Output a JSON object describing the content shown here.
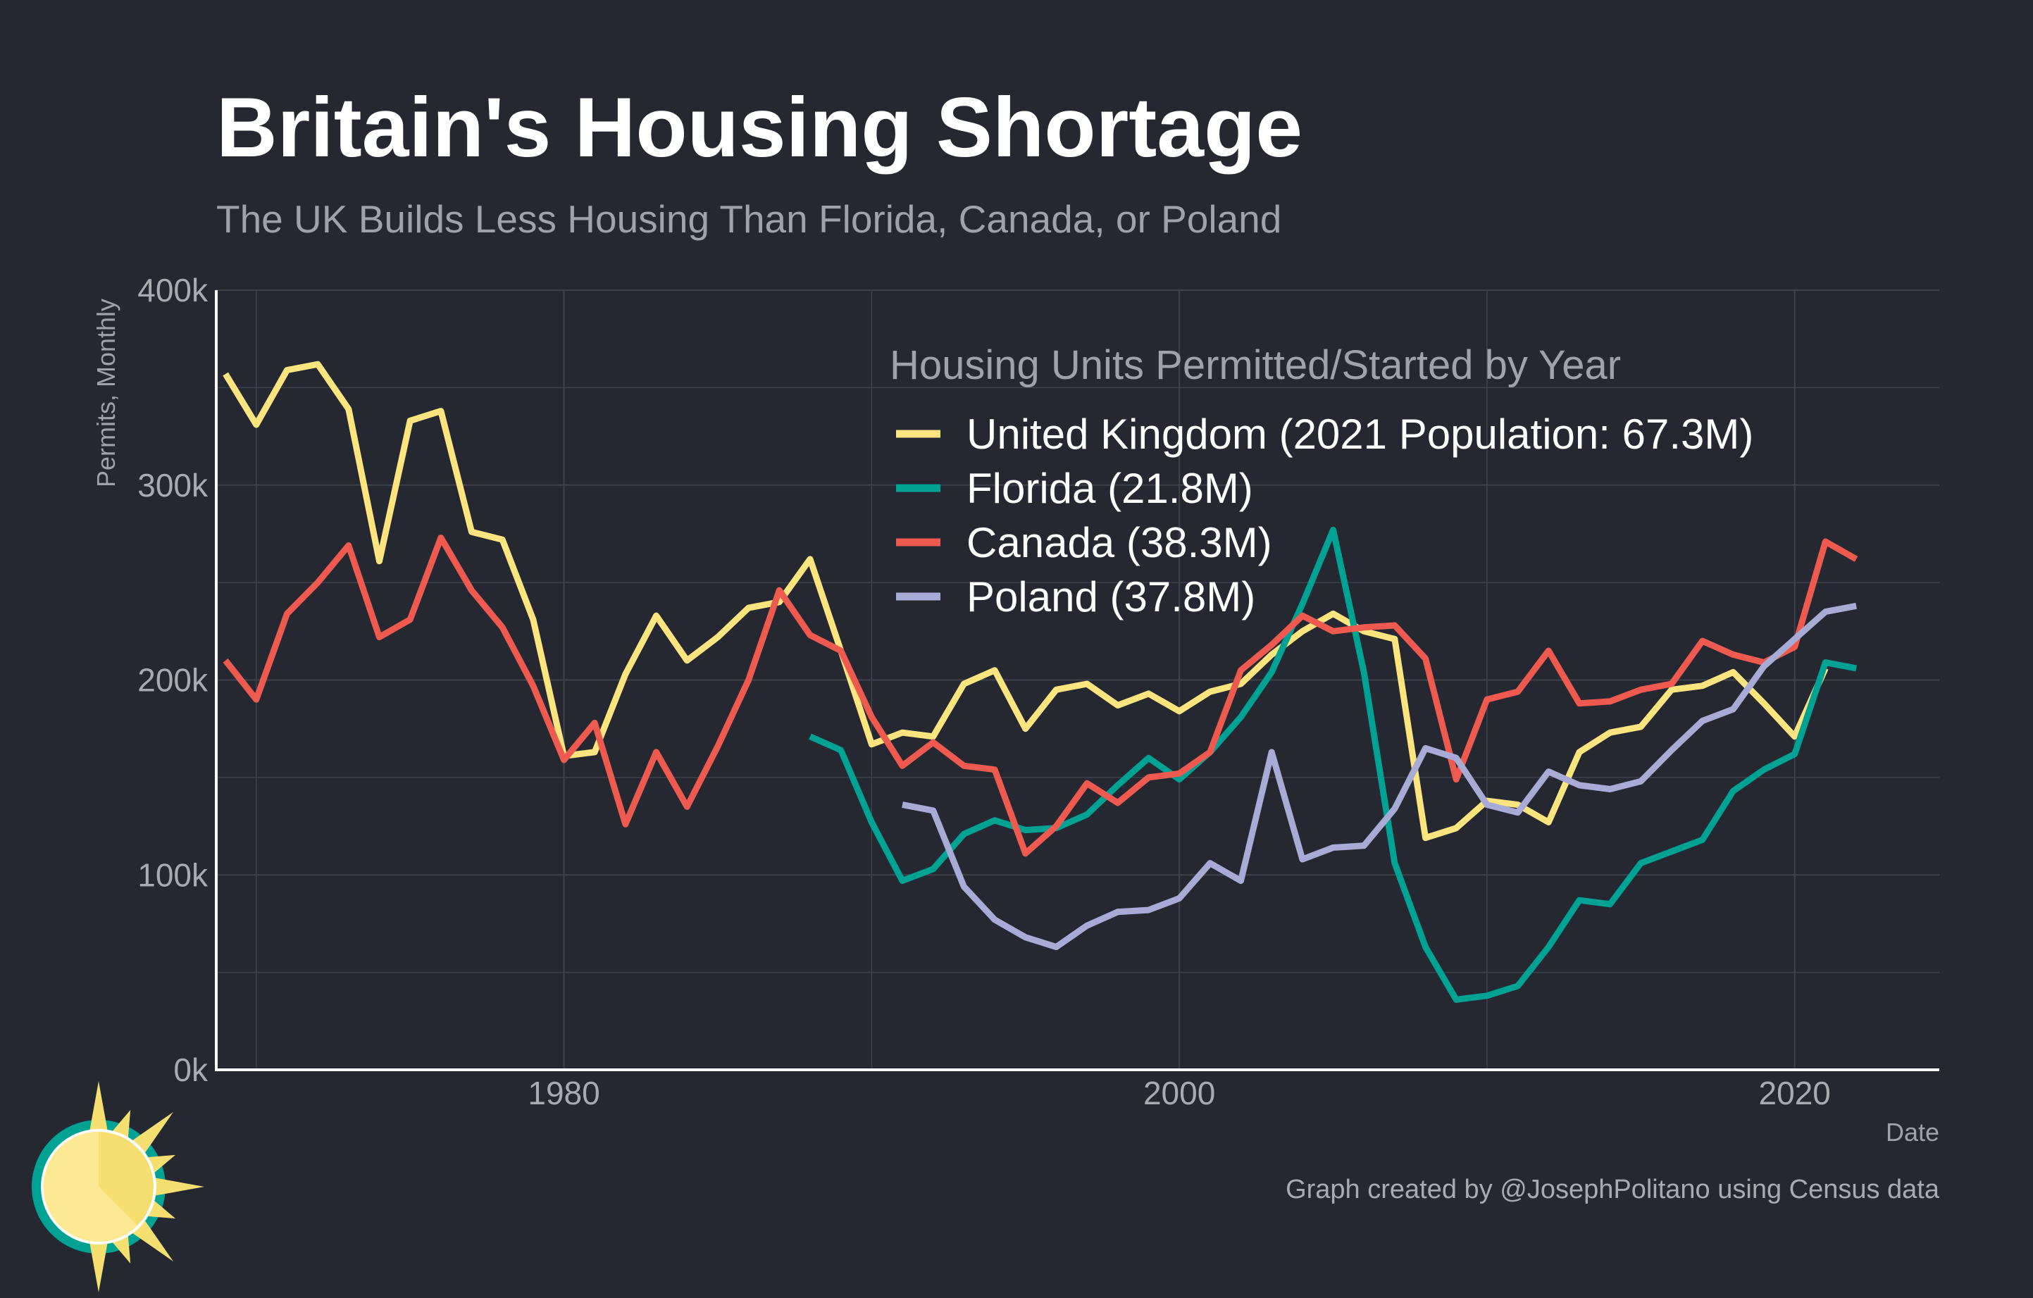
{
  "colors": {
    "background": "#252830",
    "grid": "#3e424b",
    "axis": "#ffffff"
  },
  "header": {
    "title": "Britain's Housing Shortage",
    "subtitle": "The UK Builds Less Housing Than Florida, Canada, or Poland"
  },
  "caption": "Graph created by @JosephPolitano using Census data",
  "logo_icon": "sun-logo-icon",
  "chart_data": {
    "type": "line",
    "title": "Britain's Housing Shortage",
    "subtitle": "The UK Builds Less Housing Than Florida, Canada, or Poland",
    "xlabel": "Date",
    "ylabel": "Permits, Monthly",
    "xlim": [
      1968.7,
      2024.7
    ],
    "ylim": [
      0,
      400000
    ],
    "x_ticks": [
      1980,
      2000,
      2020
    ],
    "y_ticks": [
      0,
      100000,
      200000,
      300000,
      400000
    ],
    "y_tick_labels": [
      "0k",
      "100k",
      "200k",
      "300k",
      "400k"
    ],
    "grid": true,
    "legend_title": "Housing Units Permitted/Started by Year",
    "legend_position": "top-right",
    "series": [
      {
        "name": "United Kingdom (2021 Population: 67.3M)",
        "color": "#fce47f",
        "x": [
          1969,
          1970,
          1971,
          1972,
          1973,
          1974,
          1975,
          1976,
          1977,
          1978,
          1979,
          1980,
          1981,
          1982,
          1983,
          1984,
          1985,
          1986,
          1987,
          1988,
          1989,
          1990,
          1991,
          1992,
          1993,
          1994,
          1995,
          1996,
          1997,
          1998,
          1999,
          2000,
          2001,
          2002,
          2003,
          2004,
          2005,
          2006,
          2007,
          2008,
          2009,
          2010,
          2011,
          2012,
          2013,
          2014,
          2015,
          2016,
          2017,
          2018,
          2019,
          2020,
          2021
        ],
        "y": [
          357000,
          331000,
          359000,
          362000,
          339000,
          261000,
          333000,
          338000,
          276000,
          272000,
          231000,
          161000,
          163000,
          203000,
          233000,
          210000,
          222000,
          237000,
          240000,
          262000,
          215000,
          167000,
          173000,
          171000,
          198000,
          205000,
          175000,
          195000,
          198000,
          187000,
          193000,
          184000,
          194000,
          198000,
          213000,
          225000,
          234000,
          225000,
          221000,
          119000,
          124000,
          138000,
          136000,
          127000,
          163000,
          173000,
          176000,
          195000,
          197000,
          204000,
          188000,
          171000,
          206000
        ]
      },
      {
        "name": "Florida (21.8M)",
        "color": "#00a294",
        "x": [
          1988,
          1989,
          1990,
          1991,
          1992,
          1993,
          1994,
          1995,
          1996,
          1997,
          1998,
          1999,
          2000,
          2001,
          2002,
          2003,
          2004,
          2005,
          2006,
          2007,
          2008,
          2009,
          2010,
          2011,
          2012,
          2013,
          2014,
          2015,
          2016,
          2017,
          2018,
          2019,
          2020,
          2021,
          2022
        ],
        "y": [
          171000,
          164000,
          127000,
          97000,
          103000,
          121000,
          128000,
          123000,
          124000,
          131000,
          146000,
          160000,
          149000,
          163000,
          181000,
          204000,
          239000,
          277000,
          204000,
          106000,
          63000,
          36000,
          38000,
          43000,
          63000,
          87000,
          85000,
          106000,
          112000,
          118000,
          143000,
          154000,
          162000,
          209000,
          206000
        ]
      },
      {
        "name": "Canada (38.3M)",
        "color": "#ee5a50",
        "x": [
          1969,
          1970,
          1971,
          1972,
          1973,
          1974,
          1975,
          1976,
          1977,
          1978,
          1979,
          1980,
          1981,
          1982,
          1983,
          1984,
          1985,
          1986,
          1987,
          1988,
          1989,
          1990,
          1991,
          1992,
          1993,
          1994,
          1995,
          1996,
          1997,
          1998,
          1999,
          2000,
          2001,
          2002,
          2003,
          2004,
          2005,
          2006,
          2007,
          2008,
          2009,
          2010,
          2011,
          2012,
          2013,
          2014,
          2015,
          2016,
          2017,
          2018,
          2019,
          2020,
          2021,
          2022
        ],
        "y": [
          210000,
          190000,
          234000,
          250000,
          269000,
          222000,
          231000,
          273000,
          246000,
          227000,
          197000,
          159000,
          178000,
          126000,
          163000,
          135000,
          166000,
          200000,
          246000,
          223000,
          215000,
          181000,
          156000,
          168000,
          156000,
          154000,
          111000,
          125000,
          147000,
          137000,
          150000,
          152000,
          163000,
          205000,
          218000,
          233000,
          225000,
          227000,
          228000,
          211000,
          149000,
          190000,
          194000,
          215000,
          188000,
          189000,
          195000,
          198000,
          220000,
          213000,
          209000,
          217000,
          271000,
          262000
        ]
      },
      {
        "name": "Poland (37.8M)",
        "color": "#a7abd6",
        "x": [
          1991,
          1992,
          1993,
          1994,
          1995,
          1996,
          1997,
          1998,
          1999,
          2000,
          2001,
          2002,
          2003,
          2004,
          2005,
          2006,
          2007,
          2008,
          2009,
          2010,
          2011,
          2012,
          2013,
          2014,
          2015,
          2016,
          2017,
          2018,
          2019,
          2020,
          2021,
          2022
        ],
        "y": [
          136000,
          133000,
          94000,
          77000,
          68000,
          63000,
          74000,
          81000,
          82000,
          88000,
          106000,
          97000,
          163000,
          108000,
          114000,
          115000,
          134000,
          165000,
          160000,
          136000,
          132000,
          153000,
          146000,
          144000,
          148000,
          164000,
          179000,
          185000,
          207000,
          221000,
          235000,
          238000
        ]
      }
    ]
  }
}
